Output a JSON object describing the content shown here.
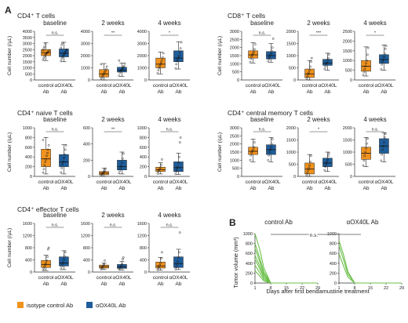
{
  "panel_a_label": "A",
  "panel_b_label": "B",
  "colors": {
    "control": "#f0921e",
    "treated": "#1f5d9a",
    "curve": "#6cc04a"
  },
  "legend": {
    "control": "isotype control Ab",
    "treated": "αOX40L Ab"
  },
  "x_labels": {
    "control_line1": "control",
    "control_line2": "Ab",
    "treated_line1": "αOX40L",
    "treated_line2": "Ab"
  },
  "panel_b": {
    "ylabel": "Tumor volume (mm³)",
    "xlabel": "Days after first bendamustine treatment",
    "sig": "n.s."
  },
  "chart_data": [
    {
      "type": "box",
      "group": "CD4⁺ T cells",
      "title": "baseline",
      "ylabel": "Cell number (/µL)",
      "ylim": [
        0,
        4000
      ],
      "yticks": [
        0,
        500,
        1000,
        1500,
        2000,
        2500,
        3000,
        3500,
        4000
      ],
      "sig": "n.s.",
      "boxes": [
        {
          "name": "isotype control Ab",
          "min": 1600,
          "q1": 2000,
          "median": 2250,
          "q3": 2500,
          "max": 3050,
          "points": [
            1650,
            1800,
            1950,
            2050,
            2150,
            2200,
            2250,
            2300,
            2400,
            2450,
            2600,
            2750,
            3000
          ]
        },
        {
          "name": "αOX40L Ab",
          "min": 1500,
          "q1": 1900,
          "median": 2200,
          "q3": 2550,
          "max": 3100,
          "points": [
            1550,
            1750,
            1900,
            2000,
            2100,
            2200,
            2300,
            2400,
            2500,
            2650,
            2900,
            3050
          ]
        }
      ]
    },
    {
      "type": "box",
      "group": "CD4⁺ T cells",
      "title": "2 weeks",
      "ylim": [
        0,
        4000
      ],
      "yticks": [
        0,
        1000,
        2000,
        3000,
        4000
      ],
      "sig": "**",
      "boxes": [
        {
          "name": "isotype control Ab",
          "min": 0,
          "q1": 250,
          "median": 500,
          "q3": 850,
          "max": 1350,
          "points": [
            80,
            200,
            320,
            450,
            520,
            650,
            780,
            900,
            1100,
            1300
          ]
        },
        {
          "name": "αOX40L Ab",
          "min": 300,
          "q1": 650,
          "median": 800,
          "q3": 1050,
          "max": 1400,
          "points": [
            350,
            600,
            700,
            800,
            850,
            950,
            1050,
            1150,
            1350,
            1600
          ]
        }
      ]
    },
    {
      "type": "box",
      "group": "CD4⁺ T cells",
      "title": "4 weeks",
      "ylim": [
        0,
        4000
      ],
      "yticks": [
        0,
        1000,
        2000,
        3000,
        4000
      ],
      "sig": "*",
      "boxes": [
        {
          "name": "isotype control Ab",
          "min": 500,
          "q1": 1000,
          "median": 1300,
          "q3": 1800,
          "max": 2300,
          "points": [
            550,
            800,
            1000,
            1150,
            1300,
            1450,
            1650,
            1850,
            2200
          ]
        },
        {
          "name": "αOX40L Ab",
          "min": 900,
          "q1": 1500,
          "median": 1800,
          "q3": 2400,
          "max": 3150,
          "points": [
            950,
            1300,
            1550,
            1700,
            1850,
            2000,
            2300,
            2600,
            3100
          ]
        }
      ]
    },
    {
      "type": "box",
      "group": "CD8⁺ T cells",
      "title": "baseline",
      "ylim": [
        0,
        3000
      ],
      "yticks": [
        0,
        500,
        1000,
        1500,
        2000,
        2500,
        3000
      ],
      "sig": "n.s.",
      "boxes": [
        {
          "name": "isotype control Ab",
          "min": 1050,
          "q1": 1350,
          "median": 1550,
          "q3": 1800,
          "max": 2300,
          "points": [
            1100,
            1300,
            1450,
            1550,
            1650,
            1750,
            1900,
            2200
          ]
        },
        {
          "name": "αOX40L Ab",
          "min": 1100,
          "q1": 1300,
          "median": 1500,
          "q3": 1750,
          "max": 2250,
          "points": [
            1150,
            1300,
            1400,
            1550,
            1650,
            1800,
            2000,
            2550
          ]
        }
      ]
    },
    {
      "type": "box",
      "group": "CD8⁺ T cells",
      "title": "2 weeks",
      "ylim": [
        0,
        2000
      ],
      "yticks": [
        0,
        500,
        1000,
        1500,
        2000
      ],
      "sig": "***",
      "boxes": [
        {
          "name": "isotype control Ab",
          "min": 0,
          "q1": 100,
          "median": 250,
          "q3": 450,
          "max": 800,
          "points": [
            50,
            150,
            250,
            300,
            400,
            550,
            750,
            900
          ]
        },
        {
          "name": "αOX40L Ab",
          "min": 400,
          "q1": 600,
          "median": 700,
          "q3": 850,
          "max": 1100,
          "points": [
            450,
            550,
            650,
            700,
            800,
            900,
            1050
          ]
        }
      ]
    },
    {
      "type": "box",
      "group": "CD8⁺ T cells",
      "title": "4 weeks",
      "ylim": [
        0,
        2500
      ],
      "yticks": [
        0,
        500,
        1000,
        1500,
        2000,
        2500
      ],
      "sig": "*",
      "boxes": [
        {
          "name": "isotype control Ab",
          "min": 200,
          "q1": 450,
          "median": 700,
          "q3": 1000,
          "max": 1700,
          "points": [
            250,
            400,
            550,
            700,
            850,
            1000,
            1300,
            1650
          ]
        },
        {
          "name": "αOX40L Ab",
          "min": 500,
          "q1": 850,
          "median": 1050,
          "q3": 1300,
          "max": 1800,
          "points": [
            550,
            800,
            950,
            1050,
            1200,
            1350,
            1600,
            1750
          ]
        }
      ]
    },
    {
      "type": "box",
      "group": "CD4⁺ naive T cells",
      "title": "baseline",
      "ylim": [
        0,
        1000
      ],
      "yticks": [
        0,
        200,
        400,
        600,
        800,
        1000
      ],
      "sig": "n.s.",
      "boxes": [
        {
          "name": "isotype control Ab",
          "min": 50,
          "q1": 200,
          "median": 360,
          "q3": 560,
          "max": 800,
          "points": [
            80,
            150,
            230,
            300,
            350,
            420,
            480,
            550,
            640,
            750
          ]
        },
        {
          "name": "αOX40L Ab",
          "min": 50,
          "q1": 200,
          "median": 300,
          "q3": 450,
          "max": 650,
          "points": [
            80,
            170,
            250,
            300,
            380,
            450,
            550,
            640
          ]
        }
      ]
    },
    {
      "type": "box",
      "group": "CD4⁺ naive T cells",
      "title": "2 weeks",
      "ylim": [
        0,
        600
      ],
      "yticks": [
        0,
        200,
        400,
        600
      ],
      "sig": "**",
      "boxes": [
        {
          "name": "isotype control Ab",
          "min": 0,
          "q1": 20,
          "median": 40,
          "q3": 60,
          "max": 100,
          "points": [
            10,
            25,
            35,
            45,
            55,
            75,
            95
          ]
        },
        {
          "name": "αOX40L Ab",
          "min": 30,
          "q1": 80,
          "median": 120,
          "q3": 200,
          "max": 300,
          "points": [
            40,
            70,
            100,
            130,
            170,
            220,
            280
          ]
        }
      ]
    },
    {
      "type": "box",
      "group": "CD4⁺ naive T cells",
      "title": "4 weeks",
      "ylim": [
        0,
        1000
      ],
      "yticks": [
        0,
        200,
        400,
        600,
        800,
        1000
      ],
      "sig": "n.s.",
      "boxes": [
        {
          "name": "isotype control Ab",
          "min": 50,
          "q1": 100,
          "median": 140,
          "q3": 190,
          "max": 280,
          "points": [
            60,
            100,
            130,
            150,
            180,
            240,
            350
          ]
        },
        {
          "name": "αOX40L Ab",
          "min": 40,
          "q1": 100,
          "median": 180,
          "q3": 300,
          "max": 480,
          "points": [
            50,
            100,
            150,
            200,
            280,
            400,
            700,
            800
          ]
        }
      ]
    },
    {
      "type": "box",
      "group": "CD4⁺ central memory T cells",
      "title": "baseline",
      "ylim": [
        0,
        3000
      ],
      "yticks": [
        0,
        500,
        1000,
        1500,
        2000,
        2500,
        3000
      ],
      "sig": "n.s.",
      "boxes": [
        {
          "name": "isotype control Ab",
          "min": 900,
          "q1": 1350,
          "median": 1550,
          "q3": 1800,
          "max": 2300,
          "points": [
            1000,
            1300,
            1450,
            1550,
            1650,
            1800,
            2100
          ]
        },
        {
          "name": "αOX40L Ab",
          "min": 900,
          "q1": 1350,
          "median": 1650,
          "q3": 1950,
          "max": 2400,
          "points": [
            1000,
            1300,
            1500,
            1650,
            1800,
            2000,
            2300
          ]
        }
      ]
    },
    {
      "type": "box",
      "group": "CD4⁺ central memory T cells",
      "title": "2 weeks",
      "ylim": [
        0,
        2000
      ],
      "yticks": [
        0,
        500,
        1000,
        1500,
        2000
      ],
      "sig": "*",
      "boxes": [
        {
          "name": "isotype control Ab",
          "min": 0,
          "q1": 100,
          "median": 300,
          "q3": 550,
          "max": 900,
          "points": [
            50,
            150,
            250,
            350,
            450,
            600,
            850
          ]
        },
        {
          "name": "αOX40L Ab",
          "min": 200,
          "q1": 400,
          "median": 550,
          "q3": 750,
          "max": 1000,
          "points": [
            250,
            400,
            500,
            600,
            700,
            850,
            950
          ]
        }
      ]
    },
    {
      "type": "box",
      "group": "CD4⁺ central memory T cells",
      "title": "4 weeks",
      "ylim": [
        0,
        2000
      ],
      "yticks": [
        0,
        500,
        1000,
        1500,
        2000
      ],
      "sig": "n.s.",
      "boxes": [
        {
          "name": "isotype control Ab",
          "min": 400,
          "q1": 700,
          "median": 950,
          "q3": 1200,
          "max": 1600,
          "points": [
            450,
            650,
            850,
            1000,
            1150,
            1350,
            1550
          ]
        },
        {
          "name": "αOX40L Ab",
          "min": 600,
          "q1": 950,
          "median": 1250,
          "q3": 1550,
          "max": 1800,
          "points": [
            650,
            900,
            1100,
            1250,
            1400,
            1600,
            1750
          ]
        }
      ]
    },
    {
      "type": "box",
      "group": "CD4⁺ effector T cells",
      "title": "baseline",
      "ylim": [
        0,
        1600
      ],
      "yticks": [
        0,
        400,
        800,
        1200,
        1600
      ],
      "sig": "n.s.",
      "boxes": [
        {
          "name": "isotype control Ab",
          "min": 50,
          "q1": 150,
          "median": 250,
          "q3": 380,
          "max": 550,
          "points": [
            60,
            120,
            180,
            240,
            300,
            380,
            500,
            750,
            800
          ]
        },
        {
          "name": "αOX40L Ab",
          "min": 80,
          "q1": 200,
          "median": 300,
          "q3": 500,
          "max": 700,
          "points": [
            100,
            180,
            260,
            320,
            420,
            520,
            650
          ]
        }
      ]
    },
    {
      "type": "box",
      "group": "CD4⁺ effector T cells",
      "title": "2 weeks",
      "ylim": [
        0,
        1600
      ],
      "yticks": [
        0,
        400,
        800,
        1200,
        1600
      ],
      "sig": "n.s.",
      "boxes": [
        {
          "name": "isotype control Ab",
          "min": 80,
          "q1": 130,
          "median": 180,
          "q3": 230,
          "max": 300,
          "points": [
            90,
            130,
            170,
            200,
            250,
            380
          ]
        },
        {
          "name": "αOX40L Ab",
          "min": 70,
          "q1": 120,
          "median": 170,
          "q3": 250,
          "max": 350,
          "points": [
            80,
            120,
            160,
            200,
            260,
            420,
            480
          ]
        }
      ]
    },
    {
      "type": "box",
      "group": "CD4⁺ effector T cells",
      "title": "4 weeks",
      "ylim": [
        0,
        1600
      ],
      "yticks": [
        0,
        400,
        800,
        1200,
        1600
      ],
      "sig": "n.s.",
      "boxes": [
        {
          "name": "isotype control Ab",
          "min": 60,
          "q1": 130,
          "median": 200,
          "q3": 330,
          "max": 480,
          "points": [
            70,
            130,
            180,
            230,
            300,
            450,
            650
          ]
        },
        {
          "name": "αOX40L Ab",
          "min": 80,
          "q1": 150,
          "median": 280,
          "q3": 500,
          "max": 750,
          "points": [
            90,
            160,
            250,
            350,
            480,
            650,
            1300
          ]
        }
      ]
    },
    {
      "type": "line",
      "title": "control Ab",
      "ylim": [
        0,
        1000
      ],
      "yticks": [
        0,
        200,
        400,
        600,
        800,
        1000
      ],
      "xticks": [
        1,
        8,
        15,
        22,
        29
      ],
      "series": [
        {
          "x": [
            1,
            3,
            5,
            8
          ],
          "y": [
            1000,
            700,
            300,
            0
          ]
        },
        {
          "x": [
            1,
            3,
            5,
            8
          ],
          "y": [
            800,
            520,
            220,
            0
          ]
        },
        {
          "x": [
            1,
            3,
            5,
            8
          ],
          "y": [
            700,
            450,
            180,
            0
          ]
        },
        {
          "x": [
            1,
            3,
            5,
            8
          ],
          "y": [
            560,
            360,
            140,
            0
          ]
        },
        {
          "x": [
            1,
            3,
            5,
            8
          ],
          "y": [
            480,
            300,
            100,
            0
          ]
        },
        {
          "x": [
            1,
            3,
            5,
            8
          ],
          "y": [
            360,
            220,
            70,
            0
          ]
        },
        {
          "x": [
            1,
            3,
            5,
            8
          ],
          "y": [
            250,
            150,
            40,
            0
          ]
        },
        {
          "x": [
            8,
            15,
            22,
            29
          ],
          "y": [
            0,
            0,
            0,
            0
          ]
        }
      ]
    },
    {
      "type": "line",
      "title": "αOX40L Ab",
      "ylim": [
        0,
        1000
      ],
      "yticks": [
        0,
        200,
        400,
        600,
        800,
        1000
      ],
      "xticks": [
        1,
        8,
        15,
        22,
        29
      ],
      "series": [
        {
          "x": [
            1,
            3,
            5,
            8
          ],
          "y": [
            860,
            580,
            230,
            0
          ]
        },
        {
          "x": [
            1,
            3,
            5,
            8
          ],
          "y": [
            760,
            480,
            180,
            0
          ]
        },
        {
          "x": [
            1,
            3,
            5,
            8
          ],
          "y": [
            600,
            350,
            120,
            0
          ]
        },
        {
          "x": [
            8,
            15,
            22,
            29
          ],
          "y": [
            0,
            0,
            0,
            0
          ]
        }
      ]
    }
  ]
}
